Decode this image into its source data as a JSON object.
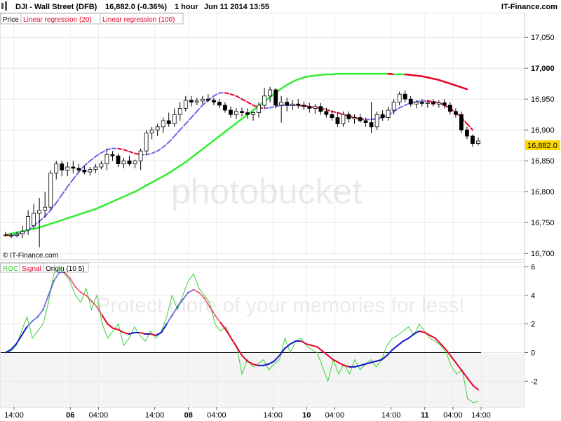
{
  "header": {
    "symbol_title": "DJI - Wall Street (DFB)",
    "change": "16,882.0 (-0.36%)",
    "interval": "1 hour",
    "date_time": "Jun 11 2014 13:55",
    "brand": "IT-Finance.com"
  },
  "price_panel": {
    "legend": [
      "Price",
      "Linear regression (20)",
      "Linear regression (100)"
    ],
    "watermark": "© IT-Finance.com",
    "last_price_label": "16,882.0"
  },
  "roc_panel": {
    "legend": [
      "ROC",
      "Signal",
      "Origin (10 5)"
    ]
  },
  "colors": {
    "up": "#3bd13b",
    "down": "#e8002a",
    "reg20_up": "#6a6ae8",
    "reg20_down": "#e8002a",
    "reg100_up": "#33ee33",
    "reg100_down": "#e8002a",
    "roc": "#3bd13b",
    "signal_up": "#1414c8",
    "signal_down": "#e8002a",
    "last_price_bg": "#ffd700"
  },
  "chart_data": [
    {
      "type": "candlestick",
      "title": "DJI - Wall Street (DFB)",
      "ylim": [
        16690,
        17090
      ],
      "y_ticks": [
        "16,700",
        "16,750",
        "16,800",
        "16,850",
        "16,900",
        "16,950",
        "17,000",
        "17,050"
      ],
      "x_ticks": [
        "14:00",
        "06",
        "04:00",
        "14:00",
        "08",
        "04:00",
        "14:00",
        "10",
        "04:00",
        "14:00",
        "11",
        "04:00",
        "14:00"
      ],
      "candles": [
        {
          "o": 16730,
          "h": 16735,
          "l": 16727,
          "c": 16730
        },
        {
          "o": 16728,
          "h": 16733,
          "l": 16725,
          "c": 16729
        },
        {
          "o": 16729,
          "h": 16735,
          "l": 16726,
          "c": 16731
        },
        {
          "o": 16732,
          "h": 16745,
          "l": 16725,
          "c": 16735
        },
        {
          "o": 16738,
          "h": 16770,
          "l": 16730,
          "c": 16760
        },
        {
          "o": 16745,
          "h": 16780,
          "l": 16740,
          "c": 16765
        },
        {
          "o": 16765,
          "h": 16790,
          "l": 16710,
          "c": 16770
        },
        {
          "o": 16770,
          "h": 16800,
          "l": 16758,
          "c": 16775
        },
        {
          "o": 16775,
          "h": 16835,
          "l": 16770,
          "c": 16830
        },
        {
          "o": 16830,
          "h": 16850,
          "l": 16820,
          "c": 16845
        },
        {
          "o": 16845,
          "h": 16850,
          "l": 16825,
          "c": 16835
        },
        {
          "o": 16835,
          "h": 16848,
          "l": 16825,
          "c": 16840
        },
        {
          "o": 16840,
          "h": 16850,
          "l": 16830,
          "c": 16838
        },
        {
          "o": 16838,
          "h": 16845,
          "l": 16830,
          "c": 16835
        },
        {
          "o": 16835,
          "h": 16842,
          "l": 16828,
          "c": 16832
        },
        {
          "o": 16832,
          "h": 16840,
          "l": 16826,
          "c": 16836
        },
        {
          "o": 16836,
          "h": 16845,
          "l": 16830,
          "c": 16840
        },
        {
          "o": 16840,
          "h": 16850,
          "l": 16836,
          "c": 16845
        },
        {
          "o": 16845,
          "h": 16870,
          "l": 16835,
          "c": 16860
        },
        {
          "o": 16860,
          "h": 16866,
          "l": 16850,
          "c": 16858
        },
        {
          "o": 16858,
          "h": 16862,
          "l": 16840,
          "c": 16845
        },
        {
          "o": 16845,
          "h": 16855,
          "l": 16838,
          "c": 16850
        },
        {
          "o": 16850,
          "h": 16858,
          "l": 16842,
          "c": 16845
        },
        {
          "o": 16845,
          "h": 16852,
          "l": 16838,
          "c": 16850
        },
        {
          "o": 16850,
          "h": 16870,
          "l": 16835,
          "c": 16866
        },
        {
          "o": 16866,
          "h": 16900,
          "l": 16860,
          "c": 16895
        },
        {
          "o": 16895,
          "h": 16905,
          "l": 16885,
          "c": 16900
        },
        {
          "o": 16900,
          "h": 16910,
          "l": 16890,
          "c": 16905
        },
        {
          "o": 16905,
          "h": 16920,
          "l": 16895,
          "c": 16915
        },
        {
          "o": 16915,
          "h": 16928,
          "l": 16905,
          "c": 16910
        },
        {
          "o": 16910,
          "h": 16935,
          "l": 16905,
          "c": 16925
        },
        {
          "o": 16925,
          "h": 16945,
          "l": 16915,
          "c": 16935
        },
        {
          "o": 16935,
          "h": 16955,
          "l": 16930,
          "c": 16948
        },
        {
          "o": 16948,
          "h": 16955,
          "l": 16938,
          "c": 16945
        },
        {
          "o": 16945,
          "h": 16952,
          "l": 16940,
          "c": 16947
        },
        {
          "o": 16947,
          "h": 16955,
          "l": 16942,
          "c": 16950
        },
        {
          "o": 16950,
          "h": 16958,
          "l": 16945,
          "c": 16948
        },
        {
          "o": 16948,
          "h": 16952,
          "l": 16940,
          "c": 16945
        },
        {
          "o": 16945,
          "h": 16950,
          "l": 16935,
          "c": 16940
        },
        {
          "o": 16940,
          "h": 16945,
          "l": 16928,
          "c": 16932
        },
        {
          "o": 16932,
          "h": 16938,
          "l": 16920,
          "c": 16925
        },
        {
          "o": 16925,
          "h": 16935,
          "l": 16918,
          "c": 16930
        },
        {
          "o": 16930,
          "h": 16936,
          "l": 16922,
          "c": 16928
        },
        {
          "o": 16928,
          "h": 16935,
          "l": 16918,
          "c": 16925
        },
        {
          "o": 16925,
          "h": 16930,
          "l": 16915,
          "c": 16928
        },
        {
          "o": 16928,
          "h": 16945,
          "l": 16920,
          "c": 16940
        },
        {
          "o": 16940,
          "h": 16968,
          "l": 16935,
          "c": 16955
        },
        {
          "o": 16955,
          "h": 16970,
          "l": 16945,
          "c": 16965
        },
        {
          "o": 16965,
          "h": 16968,
          "l": 16935,
          "c": 16940
        },
        {
          "o": 16940,
          "h": 16955,
          "l": 16912,
          "c": 16945
        },
        {
          "o": 16945,
          "h": 16952,
          "l": 16930,
          "c": 16940
        },
        {
          "o": 16940,
          "h": 16948,
          "l": 16932,
          "c": 16942
        },
        {
          "o": 16942,
          "h": 16950,
          "l": 16935,
          "c": 16940
        },
        {
          "o": 16940,
          "h": 16946,
          "l": 16932,
          "c": 16938
        },
        {
          "o": 16938,
          "h": 16944,
          "l": 16928,
          "c": 16935
        },
        {
          "o": 16935,
          "h": 16942,
          "l": 16926,
          "c": 16938
        },
        {
          "o": 16938,
          "h": 16944,
          "l": 16925,
          "c": 16930
        },
        {
          "o": 16930,
          "h": 16936,
          "l": 16920,
          "c": 16925
        },
        {
          "o": 16925,
          "h": 16932,
          "l": 16915,
          "c": 16920
        },
        {
          "o": 16920,
          "h": 16928,
          "l": 16905,
          "c": 16910
        },
        {
          "o": 16910,
          "h": 16930,
          "l": 16905,
          "c": 16925
        },
        {
          "o": 16925,
          "h": 16930,
          "l": 16912,
          "c": 16918
        },
        {
          "o": 16918,
          "h": 16925,
          "l": 16910,
          "c": 16920
        },
        {
          "o": 16920,
          "h": 16926,
          "l": 16912,
          "c": 16915
        },
        {
          "o": 16915,
          "h": 16920,
          "l": 16905,
          "c": 16912
        },
        {
          "o": 16912,
          "h": 16945,
          "l": 16895,
          "c": 16905
        },
        {
          "o": 16905,
          "h": 16930,
          "l": 16900,
          "c": 16925
        },
        {
          "o": 16925,
          "h": 16932,
          "l": 16915,
          "c": 16920
        },
        {
          "o": 16920,
          "h": 16938,
          "l": 16915,
          "c": 16932
        },
        {
          "o": 16932,
          "h": 16950,
          "l": 16925,
          "c": 16945
        },
        {
          "o": 16945,
          "h": 16962,
          "l": 16940,
          "c": 16958
        },
        {
          "o": 16958,
          "h": 16964,
          "l": 16945,
          "c": 16950
        },
        {
          "o": 16950,
          "h": 16955,
          "l": 16938,
          "c": 16942
        },
        {
          "o": 16942,
          "h": 16948,
          "l": 16935,
          "c": 16945
        },
        {
          "o": 16945,
          "h": 16950,
          "l": 16938,
          "c": 16943
        },
        {
          "o": 16943,
          "h": 16948,
          "l": 16936,
          "c": 16945
        },
        {
          "o": 16945,
          "h": 16950,
          "l": 16938,
          "c": 16942
        },
        {
          "o": 16942,
          "h": 16948,
          "l": 16936,
          "c": 16944
        },
        {
          "o": 16944,
          "h": 16950,
          "l": 16935,
          "c": 16940
        },
        {
          "o": 16940,
          "h": 16945,
          "l": 16925,
          "c": 16930
        },
        {
          "o": 16930,
          "h": 16935,
          "l": 16920,
          "c": 16925
        },
        {
          "o": 16925,
          "h": 16930,
          "l": 16895,
          "c": 16900
        },
        {
          "o": 16900,
          "h": 16905,
          "l": 16885,
          "c": 16890
        },
        {
          "o": 16890,
          "h": 16893,
          "l": 16873,
          "c": 16878
        },
        {
          "o": 16878,
          "h": 16888,
          "l": 16875,
          "c": 16882
        }
      ],
      "series": [
        {
          "name": "Linear regression (20)",
          "values": [
            16730,
            16729,
            16731,
            16733,
            16738,
            16745,
            16752,
            16760,
            16770,
            16782,
            16795,
            16808,
            16820,
            16832,
            16842,
            16850,
            16857,
            16863,
            16868,
            16870,
            16870,
            16868,
            16865,
            16862,
            16860,
            16860,
            16862,
            16866,
            16872,
            16880,
            16890,
            16900,
            16910,
            16920,
            16930,
            16940,
            16948,
            16955,
            16960,
            16960,
            16958,
            16955,
            16950,
            16945,
            16940,
            16936,
            16935,
            16936,
            16938,
            16940,
            16940,
            16940,
            16940,
            16939,
            16938,
            16936,
            16935,
            16933,
            16930,
            16928,
            16925,
            16922,
            16920,
            16918,
            16917,
            16917,
            16918,
            16920,
            16924,
            16930,
            16936,
            16940,
            16944,
            16946,
            16947,
            16947,
            16946,
            16944,
            16940,
            16935,
            16928,
            16920,
            16910,
            16900,
            null
          ]
        },
        {
          "name": "Linear regression (100)",
          "values": [
            16730,
            16732,
            16734,
            16736,
            16738,
            16740,
            16742,
            16745,
            16748,
            16751,
            16754,
            16757,
            16760,
            16763,
            16766,
            16769,
            16772,
            16776,
            16780,
            16784,
            16788,
            16792,
            16796,
            16800,
            16805,
            16810,
            16815,
            16820,
            16825,
            16830,
            16836,
            16842,
            16848,
            16855,
            16862,
            16869,
            16876,
            16883,
            16890,
            16897,
            16904,
            16911,
            16918,
            16925,
            16932,
            16939,
            16946,
            16953,
            16960,
            16967,
            16973,
            16978,
            16982,
            16985,
            16987,
            16988,
            16989,
            16990,
            16990,
            16991,
            16991,
            16991,
            16991,
            16991,
            16991,
            16991,
            16991,
            16991,
            16991,
            16990,
            16990,
            16990,
            16989,
            16988,
            16987,
            16985,
            16983,
            16981,
            16978,
            16975,
            16972,
            16969,
            16966,
            null,
            null
          ]
        }
      ]
    },
    {
      "type": "line",
      "title": "ROC",
      "ylim": [
        -3.8,
        6.3
      ],
      "y_ticks": [
        "-2",
        "0",
        "2",
        "4",
        "6"
      ],
      "series": [
        {
          "name": "ROC",
          "values": [
            0.0,
            0.1,
            0.5,
            1.5,
            2.5,
            1.0,
            1.5,
            2.0,
            3.5,
            5.5,
            6.0,
            5.5,
            5.0,
            4.0,
            3.5,
            4.5,
            3.0,
            4.0,
            2.0,
            1.0,
            1.5,
            2.0,
            0.5,
            1.0,
            1.8,
            1.2,
            0.8,
            1.5,
            1.0,
            1.5,
            2.5,
            4.0,
            3.0,
            4.0,
            5.0,
            5.5,
            4.5,
            4.0,
            3.5,
            2.0,
            1.5,
            1.8,
            1.0,
            0.5,
            -1.5,
            -0.5,
            -1.0,
            -0.8,
            -0.5,
            -1.2,
            -0.8,
            -0.5,
            1.0,
            0.0,
            0.8,
            1.0,
            0.5,
            0.2,
            0.0,
            -1.0,
            -2.0,
            -0.5,
            -1.5,
            -0.8,
            -1.5,
            -0.5,
            -1.2,
            -0.8,
            -0.5,
            -1.0,
            -0.5,
            0.5,
            1.0,
            1.2,
            1.5,
            1.8,
            1.2,
            2.0,
            1.5,
            1.0,
            0.8,
            0.5,
            0.0,
            -1.0,
            -1.5,
            -1.2,
            -3.2,
            -3.5,
            -3.4
          ]
        },
        {
          "name": "Signal",
          "values": [
            0.0,
            0.2,
            0.6,
            1.2,
            1.8,
            2.2,
            2.5,
            3.0,
            4.0,
            5.0,
            5.6,
            5.6,
            5.2,
            4.6,
            4.2,
            4.0,
            3.6,
            3.2,
            2.6,
            2.0,
            1.7,
            1.6,
            1.4,
            1.3,
            1.4,
            1.4,
            1.3,
            1.3,
            1.2,
            1.4,
            2.0,
            2.6,
            3.2,
            3.7,
            4.2,
            4.4,
            4.2,
            3.8,
            3.2,
            2.6,
            2.1,
            1.6,
            1.0,
            0.4,
            -0.2,
            -0.6,
            -0.8,
            -0.9,
            -0.9,
            -0.8,
            -0.6,
            -0.2,
            0.3,
            0.6,
            0.8,
            0.8,
            0.6,
            0.5,
            0.4,
            0.1,
            -0.2,
            -0.5,
            -0.7,
            -0.9,
            -1.0,
            -1.0,
            -0.9,
            -0.8,
            -0.7,
            -0.6,
            -0.5,
            -0.2,
            0.2,
            0.5,
            0.8,
            1.0,
            1.3,
            1.5,
            1.4,
            1.2,
            1.0,
            0.6,
            0.2,
            -0.3,
            -0.8,
            -1.3,
            -1.8,
            -2.3,
            -2.6
          ]
        },
        {
          "name": "Origin",
          "values": [
            0,
            0
          ]
        }
      ]
    }
  ]
}
